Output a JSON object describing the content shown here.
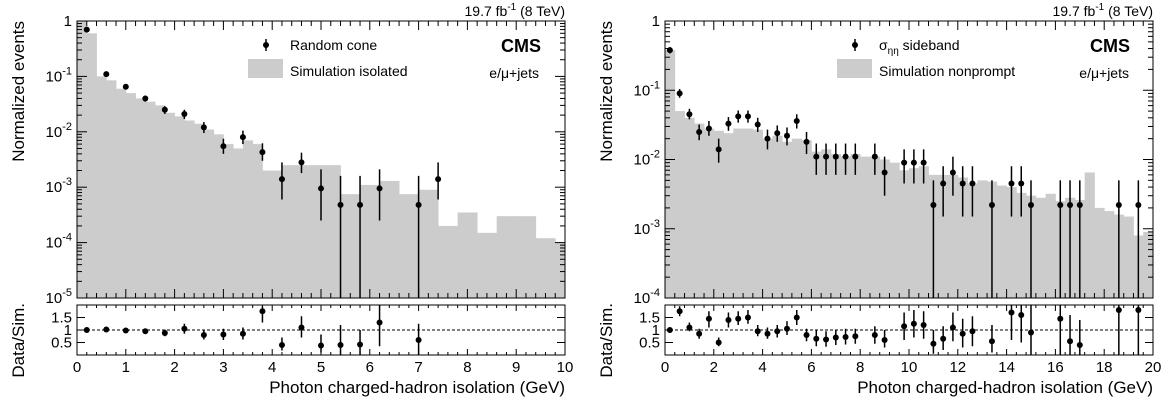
{
  "chart_data": [
    {
      "type": "bar",
      "lumi": {
        "pre": "19.7 fb",
        "sup": "-1",
        "post": " (8 TeV)"
      },
      "experiment": "CMS",
      "channel": "e/μ+jets",
      "xlabel": "Photon charged-hadron isolation (GeV)",
      "ylabel_top": "Normalized events",
      "ylabel_bottom": "Data/Sim.",
      "xlim": [
        0,
        10
      ],
      "ylim_top": [
        1e-05,
        1
      ],
      "y_log": true,
      "ylim_bottom": [
        0,
        2
      ],
      "x_ticks": [
        "0",
        "1",
        "2",
        "3",
        "4",
        "5",
        "6",
        "7",
        "8",
        "9",
        "10"
      ],
      "y_ticks_top": [
        {
          "base": "10",
          "exp": "-5"
        },
        {
          "base": "10",
          "exp": "-4"
        },
        {
          "base": "10",
          "exp": "-3"
        },
        {
          "base": "10",
          "exp": "-2"
        },
        {
          "base": "10",
          "exp": "-1"
        },
        {
          "base": "1",
          "exp": ""
        }
      ],
      "y_ticks_bottom": [
        "0.5",
        "1",
        "1.5"
      ],
      "legend": {
        "data": "Random cone",
        "sim": "Simulation isolated"
      },
      "sim_bins": {
        "edges": [
          0,
          0.2,
          0.4,
          0.6,
          0.8,
          1.0,
          1.2,
          1.4,
          1.6,
          1.8,
          2.0,
          2.2,
          2.4,
          2.6,
          2.8,
          3.0,
          3.2,
          3.4,
          3.6,
          3.8,
          4.2,
          4.6,
          5.0,
          5.4,
          5.8,
          6.2,
          6.6,
          7.0,
          7.4,
          7.8,
          8.2,
          8.6,
          9.0,
          9.4,
          9.8,
          10.0
        ],
        "values": [
          1.0,
          0.6,
          0.1,
          0.085,
          0.06,
          0.05,
          0.04,
          0.035,
          0.03,
          0.022,
          0.019,
          0.016,
          0.014,
          0.011,
          0.009,
          0.006,
          0.005,
          0.007,
          0.006,
          0.002,
          0.0025,
          0.0025,
          0.0025,
          0.00075,
          0.0011,
          0.0013,
          0.00075,
          0.0009,
          0.0002,
          0.00035,
          0.00015,
          0.0003,
          0.0003,
          0.00012,
          0.0001
        ]
      },
      "data_points": [
        {
          "x": 0.2,
          "y": 0.7,
          "lo": 0.65,
          "hi": 0.75
        },
        {
          "x": 0.6,
          "y": 0.11,
          "lo": 0.1,
          "hi": 0.12
        },
        {
          "x": 1.0,
          "y": 0.065,
          "lo": 0.058,
          "hi": 0.072
        },
        {
          "x": 1.4,
          "y": 0.04,
          "lo": 0.035,
          "hi": 0.045
        },
        {
          "x": 1.8,
          "y": 0.025,
          "lo": 0.021,
          "hi": 0.029
        },
        {
          "x": 2.2,
          "y": 0.021,
          "lo": 0.017,
          "hi": 0.025
        },
        {
          "x": 2.6,
          "y": 0.012,
          "lo": 0.0095,
          "hi": 0.015
        },
        {
          "x": 3.0,
          "y": 0.0055,
          "lo": 0.004,
          "hi": 0.0075
        },
        {
          "x": 3.4,
          "y": 0.008,
          "lo": 0.006,
          "hi": 0.0105
        },
        {
          "x": 3.8,
          "y": 0.0043,
          "lo": 0.003,
          "hi": 0.0062
        },
        {
          "x": 4.2,
          "y": 0.0014,
          "lo": 0.0006,
          "hi": 0.0028
        },
        {
          "x": 4.6,
          "y": 0.0028,
          "lo": 0.0018,
          "hi": 0.0042
        },
        {
          "x": 5.0,
          "y": 0.00095,
          "lo": 0.00025,
          "hi": 0.0021
        },
        {
          "x": 5.4,
          "y": 0.00048,
          "lo": 1e-05,
          "hi": 0.0016
        },
        {
          "x": 5.8,
          "y": 0.00048,
          "lo": 1e-05,
          "hi": 0.0016
        },
        {
          "x": 6.2,
          "y": 0.00095,
          "lo": 0.00025,
          "hi": 0.0021
        },
        {
          "x": 7.0,
          "y": 0.00048,
          "lo": 1e-05,
          "hi": 0.0016
        },
        {
          "x": 7.4,
          "y": 0.0014,
          "lo": 0.0006,
          "hi": 0.0028
        }
      ],
      "ratio_points": [
        {
          "x": 0.2,
          "y": 1.0,
          "lo": 0.95,
          "hi": 1.05
        },
        {
          "x": 0.6,
          "y": 1.02,
          "lo": 0.94,
          "hi": 1.1
        },
        {
          "x": 1.0,
          "y": 0.98,
          "lo": 0.9,
          "hi": 1.06
        },
        {
          "x": 1.4,
          "y": 0.95,
          "lo": 0.86,
          "hi": 1.05
        },
        {
          "x": 1.8,
          "y": 0.88,
          "lo": 0.75,
          "hi": 1.02
        },
        {
          "x": 2.2,
          "y": 1.05,
          "lo": 0.85,
          "hi": 1.25
        },
        {
          "x": 2.6,
          "y": 0.8,
          "lo": 0.62,
          "hi": 0.98
        },
        {
          "x": 3.0,
          "y": 0.82,
          "lo": 0.6,
          "hi": 1.05
        },
        {
          "x": 3.4,
          "y": 0.85,
          "lo": 0.62,
          "hi": 1.1
        },
        {
          "x": 3.8,
          "y": 1.75,
          "lo": 1.3,
          "hi": 1.95
        },
        {
          "x": 4.2,
          "y": 0.4,
          "lo": 0.18,
          "hi": 0.7
        },
        {
          "x": 4.6,
          "y": 1.1,
          "lo": 0.7,
          "hi": 1.55
        },
        {
          "x": 5.0,
          "y": 0.38,
          "lo": 0.1,
          "hi": 0.82
        },
        {
          "x": 5.4,
          "y": 0.4,
          "lo": 0.0,
          "hi": 1.2
        },
        {
          "x": 5.8,
          "y": 0.42,
          "lo": 0.0,
          "hi": 1.0
        },
        {
          "x": 6.2,
          "y": 1.3,
          "lo": 0.35,
          "hi": 2.0
        },
        {
          "x": 7.0,
          "y": 0.6,
          "lo": 0.0,
          "hi": 1.25
        }
      ]
    },
    {
      "type": "bar",
      "lumi": {
        "pre": "19.7 fb",
        "sup": "-1",
        "post": " (8 TeV)"
      },
      "experiment": "CMS",
      "channel": "e/μ+jets",
      "xlabel": "Photon charged-hadron isolation (GeV)",
      "ylabel_top": "Normalized events",
      "ylabel_bottom": "Data/Sim.",
      "xlim": [
        0,
        20
      ],
      "ylim_top": [
        0.0001,
        1
      ],
      "y_log": true,
      "ylim_bottom": [
        0,
        2
      ],
      "x_ticks": [
        "0",
        "2",
        "4",
        "6",
        "8",
        "10",
        "12",
        "14",
        "16",
        "18",
        "20"
      ],
      "y_ticks_top": [
        {
          "base": "10",
          "exp": "-4"
        },
        {
          "base": "10",
          "exp": "-3"
        },
        {
          "base": "10",
          "exp": "-2"
        },
        {
          "base": "10",
          "exp": "-1"
        },
        {
          "base": "1",
          "exp": ""
        }
      ],
      "y_ticks_bottom": [
        "0.5",
        "1",
        "1.5"
      ],
      "legend": {
        "data_main": "σ",
        "data_sub": "ηη",
        "data_rest": " sideband",
        "sim": "Simulation nonprompt"
      },
      "sim_bins": {
        "edges": [
          0,
          0.4,
          0.8,
          1.2,
          1.6,
          2.0,
          2.4,
          2.8,
          3.2,
          3.6,
          4.0,
          4.4,
          4.8,
          5.2,
          5.6,
          6.0,
          6.4,
          6.8,
          7.2,
          7.6,
          8.0,
          8.4,
          8.8,
          9.2,
          9.6,
          10.0,
          10.4,
          10.8,
          11.2,
          11.6,
          12.0,
          12.4,
          12.8,
          13.2,
          13.6,
          14.0,
          14.4,
          14.8,
          15.2,
          15.6,
          16.0,
          16.4,
          16.8,
          17.2,
          17.6,
          18.0,
          18.4,
          18.8,
          19.2,
          19.6,
          20.0
        ],
        "values": [
          0.38,
          0.05,
          0.04,
          0.033,
          0.028,
          0.026,
          0.024,
          0.028,
          0.028,
          0.027,
          0.02,
          0.022,
          0.018,
          0.02,
          0.019,
          0.013,
          0.014,
          0.012,
          0.011,
          0.012,
          0.011,
          0.011,
          0.01,
          0.009,
          0.007,
          0.0075,
          0.008,
          0.006,
          0.006,
          0.006,
          0.0055,
          0.0045,
          0.005,
          0.0048,
          0.0042,
          0.004,
          0.0033,
          0.003,
          0.0028,
          0.0032,
          0.0025,
          0.0028,
          0.0026,
          0.0065,
          0.002,
          0.0018,
          0.0016,
          0.0015,
          0.0008,
          0.0009
        ]
      },
      "data_points": [
        {
          "x": 0.2,
          "y": 0.38,
          "lo": 0.34,
          "hi": 0.42
        },
        {
          "x": 0.6,
          "y": 0.09,
          "lo": 0.078,
          "hi": 0.104
        },
        {
          "x": 1.0,
          "y": 0.045,
          "lo": 0.038,
          "hi": 0.054
        },
        {
          "x": 1.4,
          "y": 0.025,
          "lo": 0.019,
          "hi": 0.032
        },
        {
          "x": 1.8,
          "y": 0.028,
          "lo": 0.022,
          "hi": 0.036
        },
        {
          "x": 2.2,
          "y": 0.014,
          "lo": 0.009,
          "hi": 0.02
        },
        {
          "x": 2.6,
          "y": 0.033,
          "lo": 0.026,
          "hi": 0.041
        },
        {
          "x": 3.0,
          "y": 0.042,
          "lo": 0.034,
          "hi": 0.051
        },
        {
          "x": 3.4,
          "y": 0.042,
          "lo": 0.034,
          "hi": 0.051
        },
        {
          "x": 3.8,
          "y": 0.032,
          "lo": 0.025,
          "hi": 0.04
        },
        {
          "x": 4.2,
          "y": 0.02,
          "lo": 0.014,
          "hi": 0.027
        },
        {
          "x": 4.6,
          "y": 0.024,
          "lo": 0.018,
          "hi": 0.031
        },
        {
          "x": 5.0,
          "y": 0.022,
          "lo": 0.016,
          "hi": 0.029
        },
        {
          "x": 5.4,
          "y": 0.036,
          "lo": 0.028,
          "hi": 0.045
        },
        {
          "x": 5.8,
          "y": 0.018,
          "lo": 0.012,
          "hi": 0.025
        },
        {
          "x": 6.2,
          "y": 0.011,
          "lo": 0.006,
          "hi": 0.017
        },
        {
          "x": 6.6,
          "y": 0.011,
          "lo": 0.006,
          "hi": 0.017
        },
        {
          "x": 7.0,
          "y": 0.011,
          "lo": 0.006,
          "hi": 0.017
        },
        {
          "x": 7.4,
          "y": 0.011,
          "lo": 0.006,
          "hi": 0.017
        },
        {
          "x": 7.8,
          "y": 0.011,
          "lo": 0.006,
          "hi": 0.017
        },
        {
          "x": 8.6,
          "y": 0.011,
          "lo": 0.006,
          "hi": 0.017
        },
        {
          "x": 9.0,
          "y": 0.0065,
          "lo": 0.003,
          "hi": 0.011
        },
        {
          "x": 9.8,
          "y": 0.009,
          "lo": 0.0045,
          "hi": 0.014
        },
        {
          "x": 10.2,
          "y": 0.009,
          "lo": 0.0045,
          "hi": 0.014
        },
        {
          "x": 10.6,
          "y": 0.009,
          "lo": 0.0045,
          "hi": 0.014
        },
        {
          "x": 11.0,
          "y": 0.0022,
          "lo": 0.0001,
          "hi": 0.005
        },
        {
          "x": 11.4,
          "y": 0.0045,
          "lo": 0.0015,
          "hi": 0.008
        },
        {
          "x": 11.8,
          "y": 0.0065,
          "lo": 0.003,
          "hi": 0.011
        },
        {
          "x": 12.2,
          "y": 0.0045,
          "lo": 0.0015,
          "hi": 0.008
        },
        {
          "x": 12.6,
          "y": 0.0045,
          "lo": 0.0015,
          "hi": 0.008
        },
        {
          "x": 13.4,
          "y": 0.0022,
          "lo": 0.0001,
          "hi": 0.005
        },
        {
          "x": 14.2,
          "y": 0.0045,
          "lo": 0.0015,
          "hi": 0.008
        },
        {
          "x": 14.6,
          "y": 0.0045,
          "lo": 0.0015,
          "hi": 0.008
        },
        {
          "x": 15.0,
          "y": 0.0022,
          "lo": 0.0001,
          "hi": 0.005
        },
        {
          "x": 16.2,
          "y": 0.0022,
          "lo": 0.0001,
          "hi": 0.005
        },
        {
          "x": 16.6,
          "y": 0.0022,
          "lo": 0.0001,
          "hi": 0.005
        },
        {
          "x": 17.0,
          "y": 0.0022,
          "lo": 0.0001,
          "hi": 0.005
        },
        {
          "x": 18.6,
          "y": 0.0022,
          "lo": 0.0001,
          "hi": 0.005
        },
        {
          "x": 19.4,
          "y": 0.0022,
          "lo": 0.0001,
          "hi": 0.005
        }
      ],
      "ratio_points": [
        {
          "x": 0.2,
          "y": 1.0,
          "lo": 0.92,
          "hi": 1.08
        },
        {
          "x": 0.6,
          "y": 1.75,
          "lo": 1.55,
          "hi": 1.95
        },
        {
          "x": 1.0,
          "y": 1.1,
          "lo": 0.95,
          "hi": 1.3
        },
        {
          "x": 1.4,
          "y": 0.85,
          "lo": 0.65,
          "hi": 1.05
        },
        {
          "x": 1.8,
          "y": 1.45,
          "lo": 1.1,
          "hi": 1.75
        },
        {
          "x": 2.2,
          "y": 0.5,
          "lo": 0.35,
          "hi": 0.7
        },
        {
          "x": 2.6,
          "y": 1.4,
          "lo": 1.1,
          "hi": 1.7
        },
        {
          "x": 3.0,
          "y": 1.45,
          "lo": 1.2,
          "hi": 1.75
        },
        {
          "x": 3.4,
          "y": 1.5,
          "lo": 1.25,
          "hi": 1.8
        },
        {
          "x": 3.8,
          "y": 0.95,
          "lo": 0.75,
          "hi": 1.2
        },
        {
          "x": 4.2,
          "y": 0.85,
          "lo": 0.65,
          "hi": 1.1
        },
        {
          "x": 4.6,
          "y": 0.95,
          "lo": 0.7,
          "hi": 1.2
        },
        {
          "x": 5.0,
          "y": 1.05,
          "lo": 0.8,
          "hi": 1.35
        },
        {
          "x": 5.4,
          "y": 1.5,
          "lo": 1.2,
          "hi": 1.8
        },
        {
          "x": 5.8,
          "y": 0.8,
          "lo": 0.55,
          "hi": 1.05
        },
        {
          "x": 6.2,
          "y": 0.65,
          "lo": 0.35,
          "hi": 1.0
        },
        {
          "x": 6.6,
          "y": 0.62,
          "lo": 0.33,
          "hi": 0.95
        },
        {
          "x": 7.0,
          "y": 0.7,
          "lo": 0.4,
          "hi": 1.0
        },
        {
          "x": 7.4,
          "y": 0.72,
          "lo": 0.42,
          "hi": 1.05
        },
        {
          "x": 7.8,
          "y": 0.75,
          "lo": 0.45,
          "hi": 1.05
        },
        {
          "x": 8.6,
          "y": 0.8,
          "lo": 0.45,
          "hi": 1.15
        },
        {
          "x": 9.0,
          "y": 0.6,
          "lo": 0.3,
          "hi": 1.0
        },
        {
          "x": 9.8,
          "y": 1.15,
          "lo": 0.6,
          "hi": 1.7
        },
        {
          "x": 10.2,
          "y": 1.25,
          "lo": 0.7,
          "hi": 1.8
        },
        {
          "x": 10.6,
          "y": 1.2,
          "lo": 0.65,
          "hi": 1.75
        },
        {
          "x": 11.0,
          "y": 0.45,
          "lo": 0.05,
          "hi": 1.0
        },
        {
          "x": 11.4,
          "y": 0.65,
          "lo": 0.2,
          "hi": 1.15
        },
        {
          "x": 11.8,
          "y": 1.1,
          "lo": 0.55,
          "hi": 1.7
        },
        {
          "x": 12.2,
          "y": 0.85,
          "lo": 0.3,
          "hi": 1.45
        },
        {
          "x": 12.6,
          "y": 0.95,
          "lo": 0.35,
          "hi": 1.55
        },
        {
          "x": 13.4,
          "y": 0.55,
          "lo": 0.1,
          "hi": 1.2
        },
        {
          "x": 14.2,
          "y": 1.7,
          "lo": 0.6,
          "hi": 2.0
        },
        {
          "x": 14.6,
          "y": 1.6,
          "lo": 0.5,
          "hi": 2.0
        },
        {
          "x": 15.0,
          "y": 0.9,
          "lo": 0.0,
          "hi": 2.0
        },
        {
          "x": 16.2,
          "y": 1.45,
          "lo": 0.0,
          "hi": 2.0
        },
        {
          "x": 16.6,
          "y": 0.55,
          "lo": 0.0,
          "hi": 1.6
        },
        {
          "x": 17.0,
          "y": 0.4,
          "lo": 0.0,
          "hi": 1.4
        },
        {
          "x": 18.6,
          "y": 1.8,
          "lo": 0.0,
          "hi": 2.0
        },
        {
          "x": 19.4,
          "y": 1.8,
          "lo": 0.0,
          "hi": 2.0
        }
      ]
    }
  ]
}
